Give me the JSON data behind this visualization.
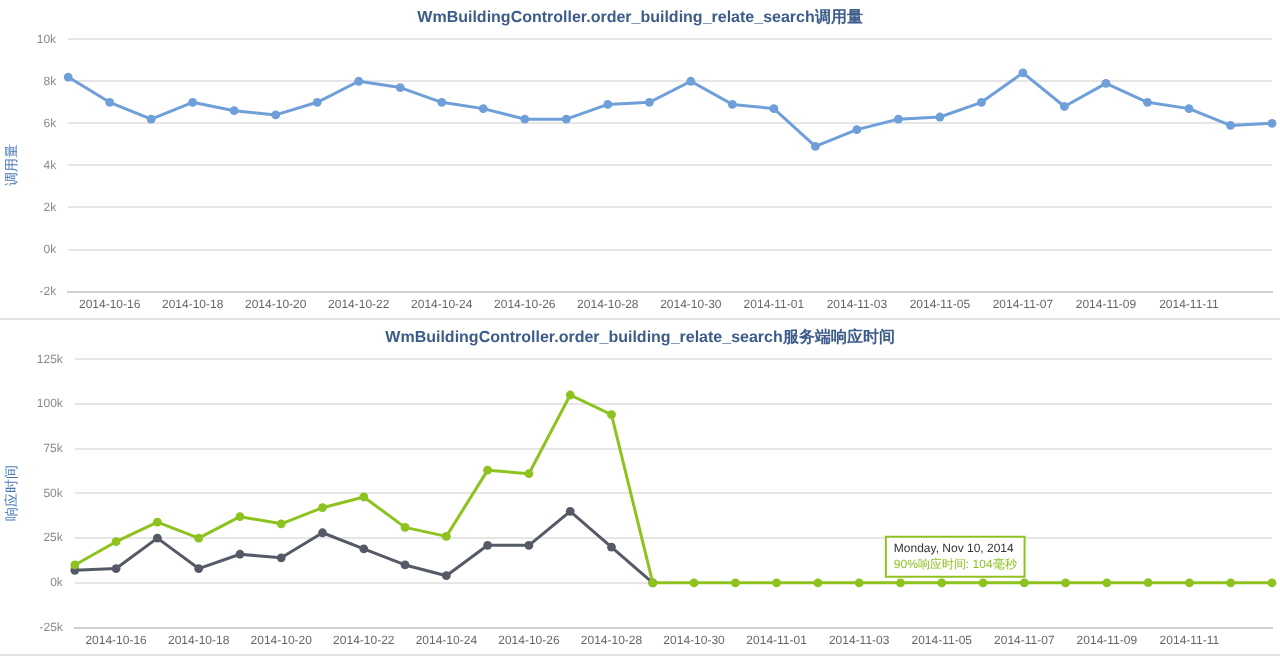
{
  "chart_data": [
    {
      "type": "line",
      "title": "WmBuildingController.order_building_relate_search调用量",
      "ylabel": "调用量",
      "categories": [
        null,
        "2014-10-16",
        null,
        "2014-10-18",
        null,
        "2014-10-20",
        null,
        "2014-10-22",
        null,
        "2014-10-24",
        null,
        "2014-10-26",
        null,
        "2014-10-28",
        null,
        "2014-10-30",
        null,
        "2014-11-01",
        null,
        "2014-11-03",
        null,
        "2014-11-05",
        null,
        "2014-11-07",
        null,
        "2014-11-09",
        null,
        "2014-11-11",
        null,
        null
      ],
      "series": [
        {
          "color": "#6f9fd8",
          "values": [
            8200,
            7000,
            6200,
            7000,
            6600,
            6400,
            7000,
            8000,
            7700,
            7000,
            6700,
            6200,
            6200,
            6900,
            7000,
            8000,
            6900,
            6700,
            4900,
            5700,
            6200,
            6300,
            7000,
            8400,
            6800,
            7900,
            7000,
            6700,
            5900,
            6000
          ]
        }
      ],
      "ylim": [
        -2000,
        10000
      ],
      "yticks": [
        {
          "value": -2000,
          "label": "-2k"
        },
        {
          "value": 0,
          "label": "0k"
        },
        {
          "value": 2000,
          "label": "2k"
        },
        {
          "value": 4000,
          "label": "4k"
        },
        {
          "value": 6000,
          "label": "6k"
        },
        {
          "value": 8000,
          "label": "8k"
        },
        {
          "value": 10000,
          "label": "10k"
        }
      ],
      "grid": "y",
      "legend": false,
      "marker": "circle",
      "line_style": "solid"
    },
    {
      "type": "line",
      "title": "WmBuildingController.order_building_relate_search服务端响应时间",
      "ylabel": "响应时间",
      "categories": [
        null,
        "2014-10-16",
        null,
        "2014-10-18",
        null,
        "2014-10-20",
        null,
        "2014-10-22",
        null,
        "2014-10-24",
        null,
        "2014-10-26",
        null,
        "2014-10-28",
        null,
        "2014-10-30",
        null,
        "2014-11-01",
        null,
        "2014-11-03",
        null,
        "2014-11-05",
        null,
        "2014-11-07",
        null,
        "2014-11-09",
        null,
        "2014-11-11",
        null,
        null
      ],
      "series": [
        {
          "color": "#8dc21f",
          "values": [
            10000,
            23000,
            34000,
            25000,
            37000,
            33000,
            42000,
            48000,
            31000,
            26000,
            63000,
            61000,
            105000,
            94000,
            0,
            0,
            0,
            0,
            0,
            0,
            0,
            0,
            0,
            0,
            0,
            0,
            104,
            0,
            0,
            0
          ]
        },
        {
          "color": "#555a66",
          "values": [
            7000,
            8000,
            25000,
            8000,
            16000,
            14000,
            28000,
            19000,
            10000,
            4000,
            21000,
            21000,
            40000,
            20000,
            0,
            null,
            null,
            null,
            null,
            null,
            null,
            null,
            null,
            null,
            null,
            null,
            null,
            null,
            null,
            null
          ]
        }
      ],
      "ylim": [
        -25000,
        125000
      ],
      "yticks": [
        {
          "value": -25000,
          "label": "-25k"
        },
        {
          "value": 0,
          "label": "0k"
        },
        {
          "value": 25000,
          "label": "25k"
        },
        {
          "value": 50000,
          "label": "50k"
        },
        {
          "value": 75000,
          "label": "75k"
        },
        {
          "value": 100000,
          "label": "100k"
        },
        {
          "value": 125000,
          "label": "125k"
        }
      ],
      "annotations": [
        "Monday, Nov 10, 2014",
        "90%响应时间: 104毫秒"
      ],
      "grid": "y",
      "legend": false,
      "marker": "circle",
      "line_style": "solid"
    }
  ]
}
